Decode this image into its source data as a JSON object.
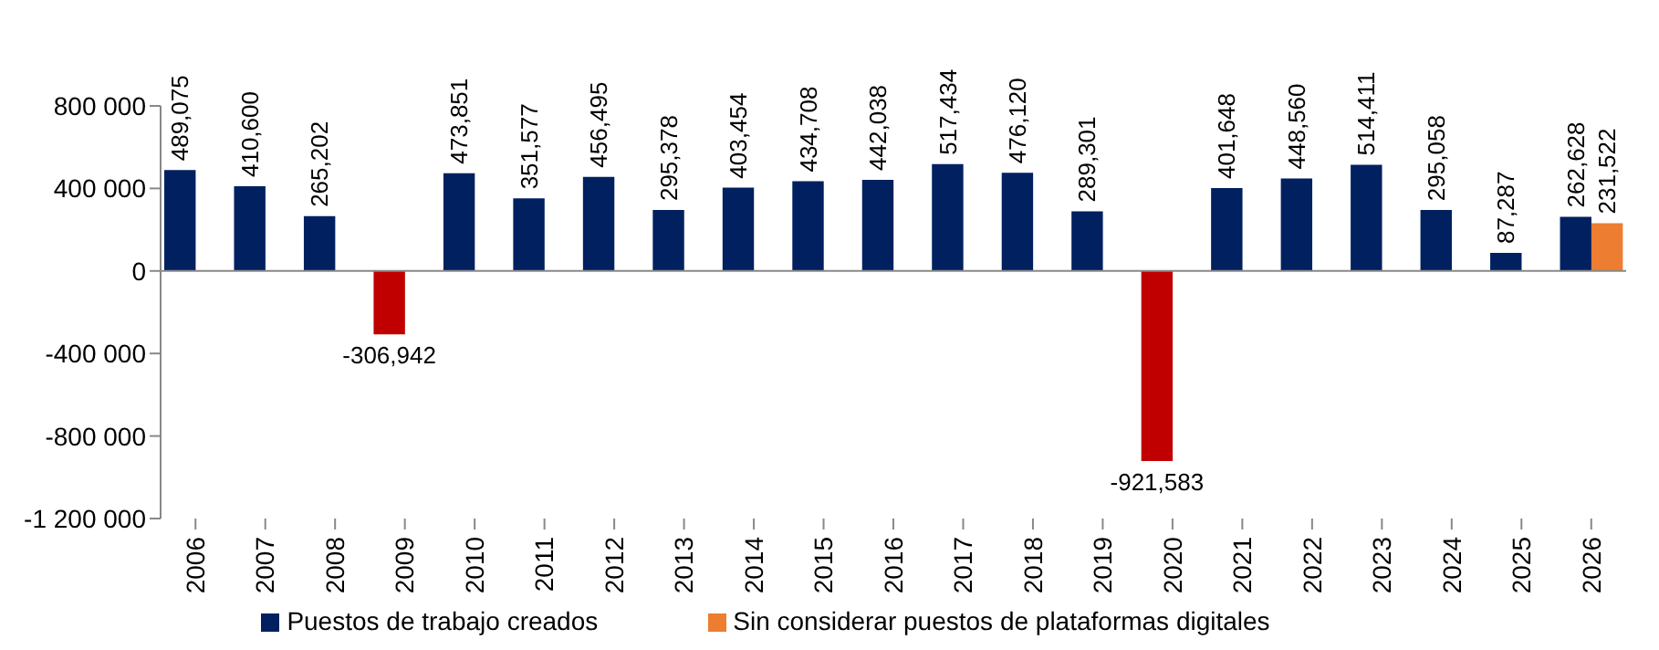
{
  "chart_data": {
    "type": "bar",
    "categories": [
      "2006",
      "2007",
      "2008",
      "2009",
      "2010",
      "2011",
      "2012",
      "2013",
      "2014",
      "2015",
      "2016",
      "2017",
      "2018",
      "2019",
      "2020",
      "2021",
      "2022",
      "2023",
      "2024",
      "2025",
      "2026"
    ],
    "series": [
      {
        "name": "Puestos de trabajo creados",
        "color": "#002060",
        "colors": [
          "#002060",
          "#002060",
          "#002060",
          "#c00000",
          "#002060",
          "#002060",
          "#002060",
          "#002060",
          "#002060",
          "#002060",
          "#002060",
          "#002060",
          "#002060",
          "#002060",
          "#c00000",
          "#002060",
          "#002060",
          "#002060",
          "#002060",
          "#002060",
          "#002060"
        ],
        "values": [
          489075,
          410600,
          265202,
          -306942,
          473851,
          351577,
          456495,
          295378,
          403454,
          434708,
          442038,
          517434,
          476120,
          289301,
          -921583,
          401648,
          448560,
          514411,
          295058,
          87287,
          262628
        ],
        "value_labels": [
          "489,075",
          "410,600",
          "265,202",
          "-306,942",
          "473,851",
          "351,577",
          "456,495",
          "295,378",
          "403,454",
          "434,708",
          "442,038",
          "517,434",
          "476,120",
          "289,301",
          "-921,583",
          "401,648",
          "448,560",
          "514,411",
          "295,058",
          "87,287",
          "262,628"
        ]
      },
      {
        "name": "Sin considerar puestos de plataformas digitales",
        "color": "#ed7d31",
        "values": [
          null,
          null,
          null,
          null,
          null,
          null,
          null,
          null,
          null,
          null,
          null,
          null,
          null,
          null,
          null,
          null,
          null,
          null,
          null,
          null,
          231522
        ],
        "value_labels": [
          null,
          null,
          null,
          null,
          null,
          null,
          null,
          null,
          null,
          null,
          null,
          null,
          null,
          null,
          null,
          null,
          null,
          null,
          null,
          null,
          "231,522"
        ]
      }
    ],
    "ylim": [
      -1200000,
      800000
    ],
    "yticks": [
      {
        "value": 800000,
        "label": "800 000"
      },
      {
        "value": 400000,
        "label": "400 000"
      },
      0,
      {
        "value": -400000,
        "label": "-400 000"
      },
      {
        "value": -800000,
        "label": "-800 000"
      },
      {
        "value": -1200000,
        "label": "-1 200 000"
      }
    ],
    "legend": "bottom"
  }
}
